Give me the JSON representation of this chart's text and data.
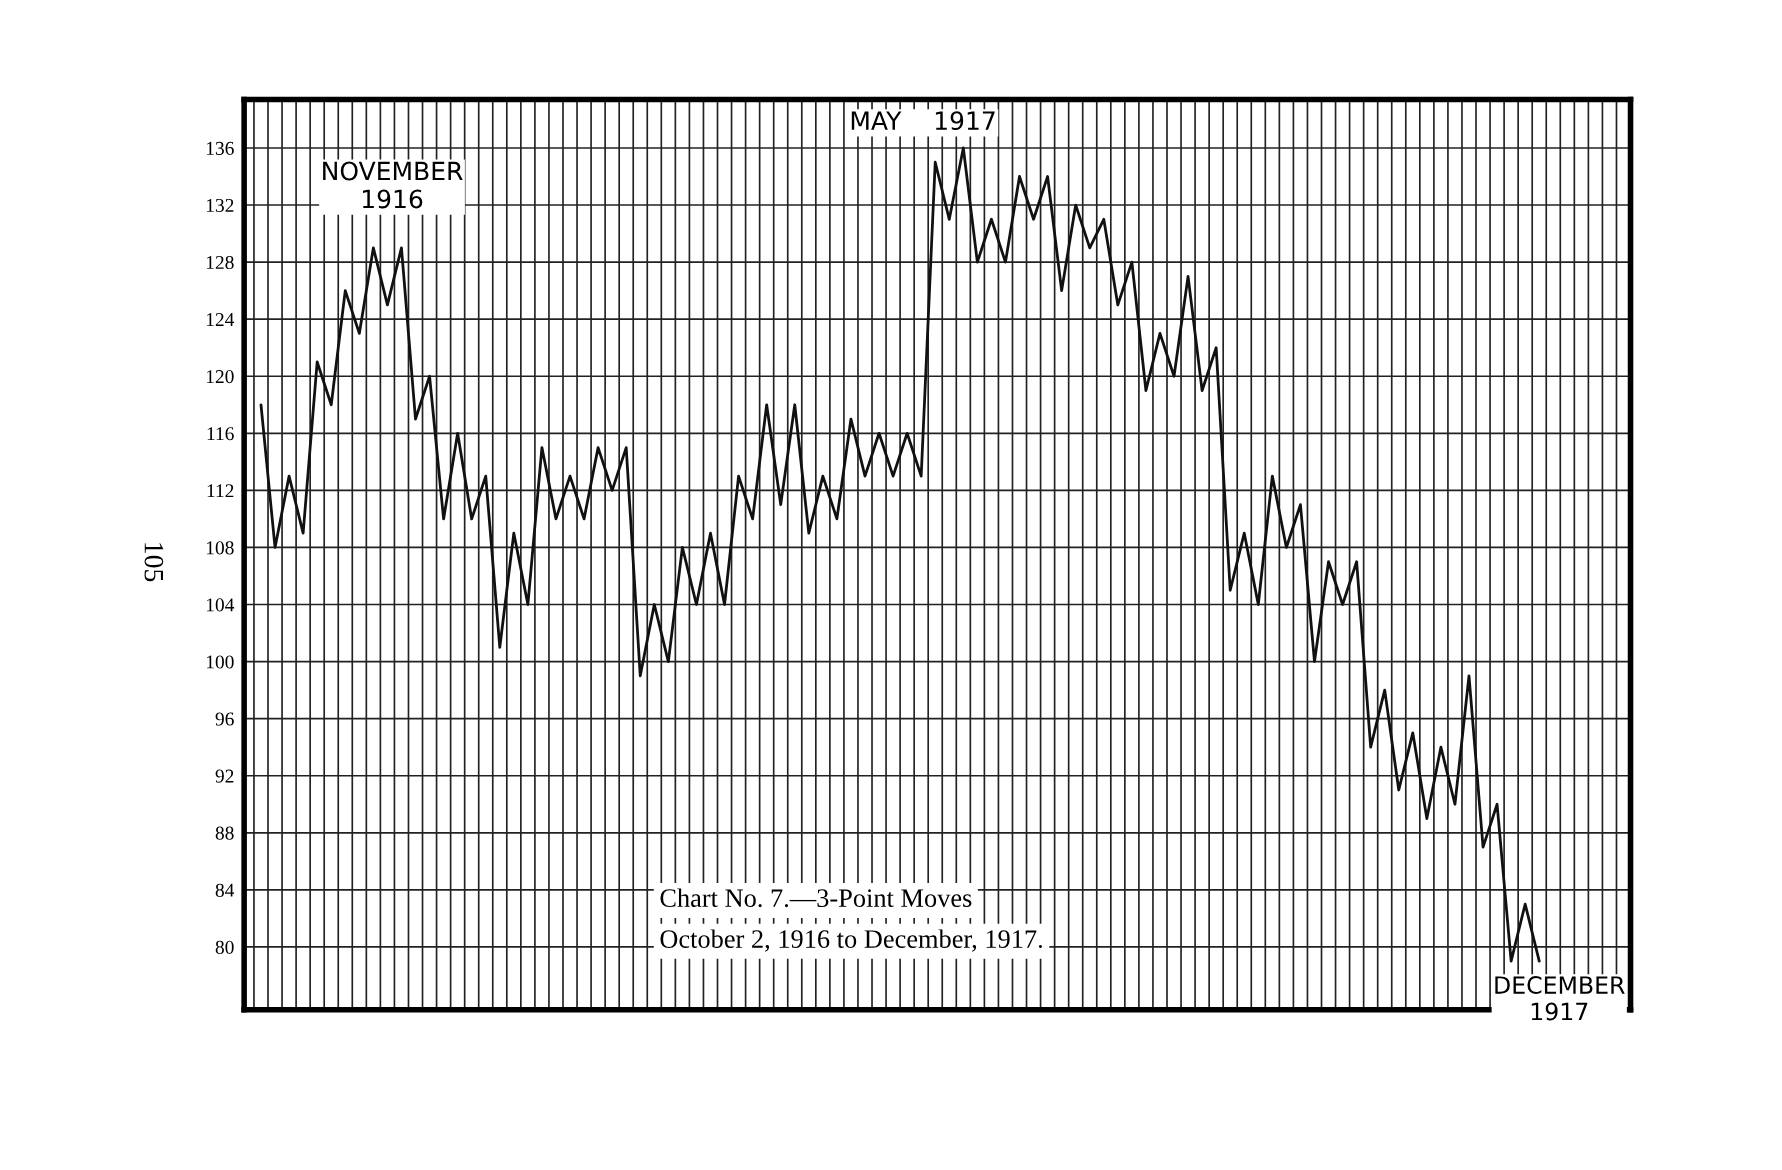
{
  "chart_data": {
    "type": "line",
    "title": "Chart No. 7.—3-Point Moves",
    "subtitle": "October 2, 1916 to December, 1917.",
    "annotations": [
      "NOVEMBER\n1916",
      "MAY    1917",
      "DECEMBER\n1917",
      "105"
    ],
    "categories": [
      null,
      null,
      null,
      null,
      null,
      null,
      null,
      null,
      null,
      null,
      null,
      null,
      null,
      null,
      null,
      null,
      null,
      null,
      null,
      null,
      null,
      null,
      null,
      null,
      null,
      null,
      null,
      null,
      null,
      null,
      null,
      null,
      null,
      null,
      null,
      null,
      null,
      null,
      null,
      null,
      null,
      null,
      null,
      null,
      null,
      null,
      null,
      null,
      null,
      null,
      null,
      null,
      null,
      null,
      null,
      null,
      null,
      null,
      null,
      null,
      null,
      null,
      null,
      null,
      null,
      null,
      null,
      null,
      null,
      null,
      null,
      null,
      null,
      null,
      null,
      null,
      null,
      null,
      null,
      null,
      null,
      null,
      null,
      null,
      null,
      null,
      null,
      null,
      null,
      null,
      null,
      null
    ],
    "series": [
      {
        "color": "#111111",
        "values": [
          118,
          108,
          113,
          109,
          121,
          118,
          126,
          123,
          129,
          125,
          129,
          117,
          120,
          110,
          116,
          110,
          113,
          101,
          109,
          104,
          115,
          110,
          113,
          110,
          115,
          112,
          115,
          99,
          104,
          100,
          108,
          104,
          109,
          104,
          113,
          110,
          118,
          111,
          118,
          109,
          113,
          110,
          117,
          113,
          116,
          113,
          116,
          113,
          135,
          131,
          136,
          128,
          131,
          128,
          134,
          131,
          134,
          126,
          132,
          129,
          131,
          125,
          128,
          119,
          123,
          120,
          127,
          119,
          122,
          105,
          109,
          104,
          113,
          108,
          111,
          100,
          107,
          104,
          107,
          94,
          98,
          91,
          95,
          89,
          94,
          90,
          99,
          87,
          90,
          79,
          83,
          79
        ]
      }
    ],
    "ylim": [
      75.6,
      139.4
    ],
    "yticks": [
      80,
      84,
      88,
      92,
      96,
      100,
      104,
      108,
      112,
      116,
      120,
      124,
      128,
      132,
      136
    ],
    "grid": true,
    "legend": false,
    "marker": "none",
    "line_style": "solid",
    "tick_labels": "y"
  }
}
